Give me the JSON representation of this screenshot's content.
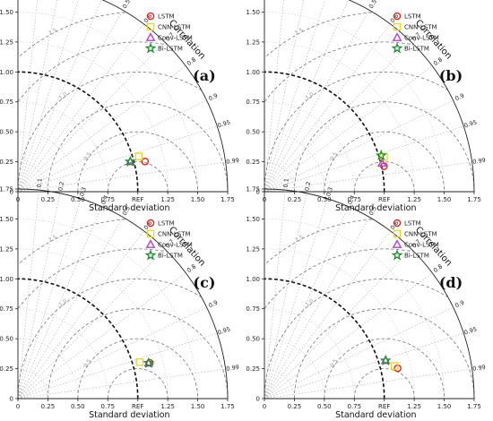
{
  "chart_data": [
    {
      "type": "scatter",
      "subtype": "taylor-diagram",
      "panel_label": "(a)",
      "xlabel": "Standard deviation",
      "corr_label": "Correlation",
      "ref_label": "REF",
      "ref_std": 1.0,
      "std_range": [
        0,
        1.75
      ],
      "std_ticks": [
        "0",
        "0.25",
        "0.50",
        "0.75",
        "REF",
        "1.25",
        "1.50",
        "1.75"
      ],
      "y_ticks": [
        "0",
        "0.25",
        "0.50",
        "0.75",
        "1.00",
        "1.25",
        "1.50",
        "1.75"
      ],
      "corr_ticks": [
        "0.1",
        "0.2",
        "0.3",
        "0.4",
        "0.5",
        "0.6",
        "0.7",
        "0.8",
        "0.9",
        "0.95",
        "0.99"
      ],
      "rms_ticks": [
        "0.5",
        "1.0",
        "1.5"
      ],
      "legend_position": "top-right",
      "series": [
        {
          "name": "LSTM",
          "marker": "circle",
          "color": "#e8231c",
          "std": 1.09,
          "corr": 0.973
        },
        {
          "name": "CNN-LSTM",
          "marker": "square",
          "color": "#e6d61c",
          "std": 1.05,
          "corr": 0.96
        },
        {
          "name": "Conv-LSTM",
          "marker": "triangle",
          "color": "#b43fd2",
          "std": 0.97,
          "corr": 0.966
        },
        {
          "name": "Bi-LSTM",
          "marker": "star",
          "color": "#1a8f2a",
          "std": 0.97,
          "corr": 0.966
        }
      ]
    },
    {
      "type": "scatter",
      "subtype": "taylor-diagram",
      "panel_label": "(b)",
      "xlabel": "Standard deviation",
      "corr_label": "Correlation",
      "ref_label": "REF",
      "ref_std": 1.0,
      "std_range": [
        0,
        1.75
      ],
      "std_ticks": [
        "0",
        "0.25",
        "0.50",
        "0.75",
        "REF",
        "1.25",
        "1.50",
        "1.75"
      ],
      "y_ticks": [
        "0",
        "0.25",
        "0.50",
        "0.75",
        "1.00",
        "1.25",
        "1.50",
        "1.75"
      ],
      "corr_ticks": [
        "0.1",
        "0.2",
        "0.3",
        "0.4",
        "0.5",
        "0.6",
        "0.7",
        "0.8",
        "0.9",
        "0.95",
        "0.99"
      ],
      "rms_ticks": [
        "0.5",
        "1.0",
        "1.5"
      ],
      "legend_position": "top-right",
      "series": [
        {
          "name": "LSTM",
          "marker": "circle",
          "color": "#e8231c",
          "std": 1.02,
          "corr": 0.978
        },
        {
          "name": "CNN-LSTM",
          "marker": "square",
          "color": "#e6d61c",
          "std": 1.04,
          "corr": 0.96
        },
        {
          "name": "Conv-LSTM",
          "marker": "triangle",
          "color": "#b43fd2",
          "std": 1.01,
          "corr": 0.972
        },
        {
          "name": "Bi-LSTM",
          "marker": "star",
          "color": "#1a8f2a",
          "std": 1.02,
          "corr": 0.955
        }
      ]
    },
    {
      "type": "scatter",
      "subtype": "taylor-diagram",
      "panel_label": "(c)",
      "xlabel": "Standard deviation",
      "corr_label": "Correlation",
      "ref_label": "REF",
      "ref_std": 1.0,
      "std_range": [
        0,
        1.75
      ],
      "std_ticks": [
        "0",
        "0.25",
        "0.50",
        "0.75",
        "REF",
        "1.25",
        "1.50",
        "1.75"
      ],
      "y_ticks": [
        "0",
        "0.25",
        "0.50",
        "0.75",
        "1.00",
        "1.25",
        "1.50",
        "1.75"
      ],
      "corr_ticks": [
        "0.1",
        "0.2",
        "0.3",
        "0.4",
        "0.5",
        "0.6",
        "0.7",
        "0.8",
        "0.9",
        "0.95",
        "0.99"
      ],
      "rms_ticks": [
        "0.5",
        "1.0",
        "1.5"
      ],
      "legend_position": "top-right",
      "series": [
        {
          "name": "LSTM",
          "marker": "circle",
          "color": "#e8231c",
          "std": 1.14,
          "corr": 0.965
        },
        {
          "name": "CNN-LSTM",
          "marker": "square",
          "color": "#e6d61c",
          "std": 1.06,
          "corr": 0.958
        },
        {
          "name": "Conv-LSTM",
          "marker": "triangle",
          "color": "#b43fd2",
          "std": 1.13,
          "corr": 0.965
        },
        {
          "name": "Bi-LSTM",
          "marker": "star",
          "color": "#1a8f2a",
          "std": 1.13,
          "corr": 0.965
        }
      ]
    },
    {
      "type": "scatter",
      "subtype": "taylor-diagram",
      "panel_label": "(d)",
      "xlabel": "Standard deviation",
      "corr_label": "Correlation",
      "ref_label": "REF",
      "ref_std": 1.0,
      "std_range": [
        0,
        1.75
      ],
      "std_ticks": [
        "0",
        "0.25",
        "0.50",
        "0.75",
        "REF",
        "1.25",
        "1.50",
        "1.75"
      ],
      "y_ticks": [
        "0",
        "0.25",
        "0.50",
        "0.75",
        "1.00",
        "1.25",
        "1.50",
        "1.75"
      ],
      "corr_ticks": [
        "0.1",
        "0.2",
        "0.3",
        "0.4",
        "0.5",
        "0.6",
        "0.7",
        "0.8",
        "0.9",
        "0.95",
        "0.99"
      ],
      "rms_ticks": [
        "0.5",
        "1.0",
        "1.5"
      ],
      "legend_position": "top-right",
      "series": [
        {
          "name": "LSTM",
          "marker": "circle",
          "color": "#e8231c",
          "std": 1.14,
          "corr": 0.975
        },
        {
          "name": "CNN-LSTM",
          "marker": "square",
          "color": "#e6d61c",
          "std": 1.12,
          "corr": 0.97
        },
        {
          "name": "Conv-LSTM",
          "marker": "triangle",
          "color": "#b43fd2",
          "std": 1.06,
          "corr": 0.954
        },
        {
          "name": "Bi-LSTM",
          "marker": "star",
          "color": "#1a8f2a",
          "std": 1.06,
          "corr": 0.954
        }
      ]
    }
  ]
}
